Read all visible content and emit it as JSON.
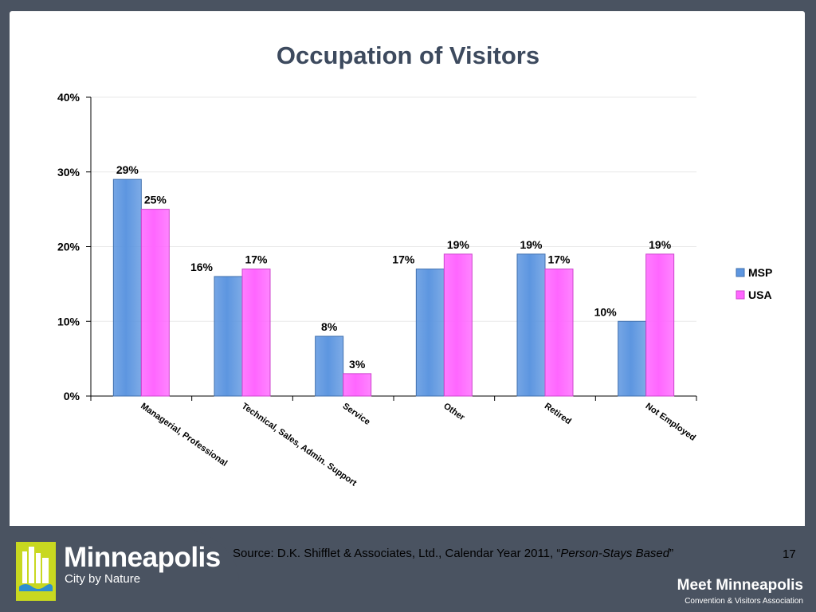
{
  "title": "Occupation of Visitors",
  "chart_data": {
    "type": "bar",
    "title": "Occupation of Visitors",
    "categories": [
      "Managerial, Professional",
      "Technical, Sales, Admin. Support",
      "Service",
      "Other",
      "Retired",
      "Not Employed"
    ],
    "series": [
      {
        "name": "MSP",
        "values": [
          29,
          16,
          8,
          17,
          19,
          10
        ],
        "labels": [
          "29%",
          "16%",
          "8%",
          "17%",
          "19%",
          "10%"
        ],
        "color": "#5d96e0"
      },
      {
        "name": "USA",
        "values": [
          25,
          17,
          3,
          19,
          17,
          19
        ],
        "labels": [
          "25%",
          "17%",
          "3%",
          "19%",
          "17%",
          "19%"
        ],
        "color": "#ff66ff"
      }
    ],
    "yticks": [
      "0%",
      "10%",
      "20%",
      "30%",
      "40%"
    ],
    "ylim": [
      0,
      40
    ],
    "legend": "right",
    "grid": true
  },
  "footer": {
    "logo_name": "Minneapolis",
    "logo_sub": "City by Nature",
    "source_prefix": "Source: D.K. Shifflet & Associates, Ltd., Calendar Year 2011, “",
    "source_italic": "Person-Stays Based",
    "source_suffix": "”",
    "page_number": "17",
    "brand_main": "Meet Minneapolis",
    "brand_sub": "Convention & Visitors Association"
  }
}
